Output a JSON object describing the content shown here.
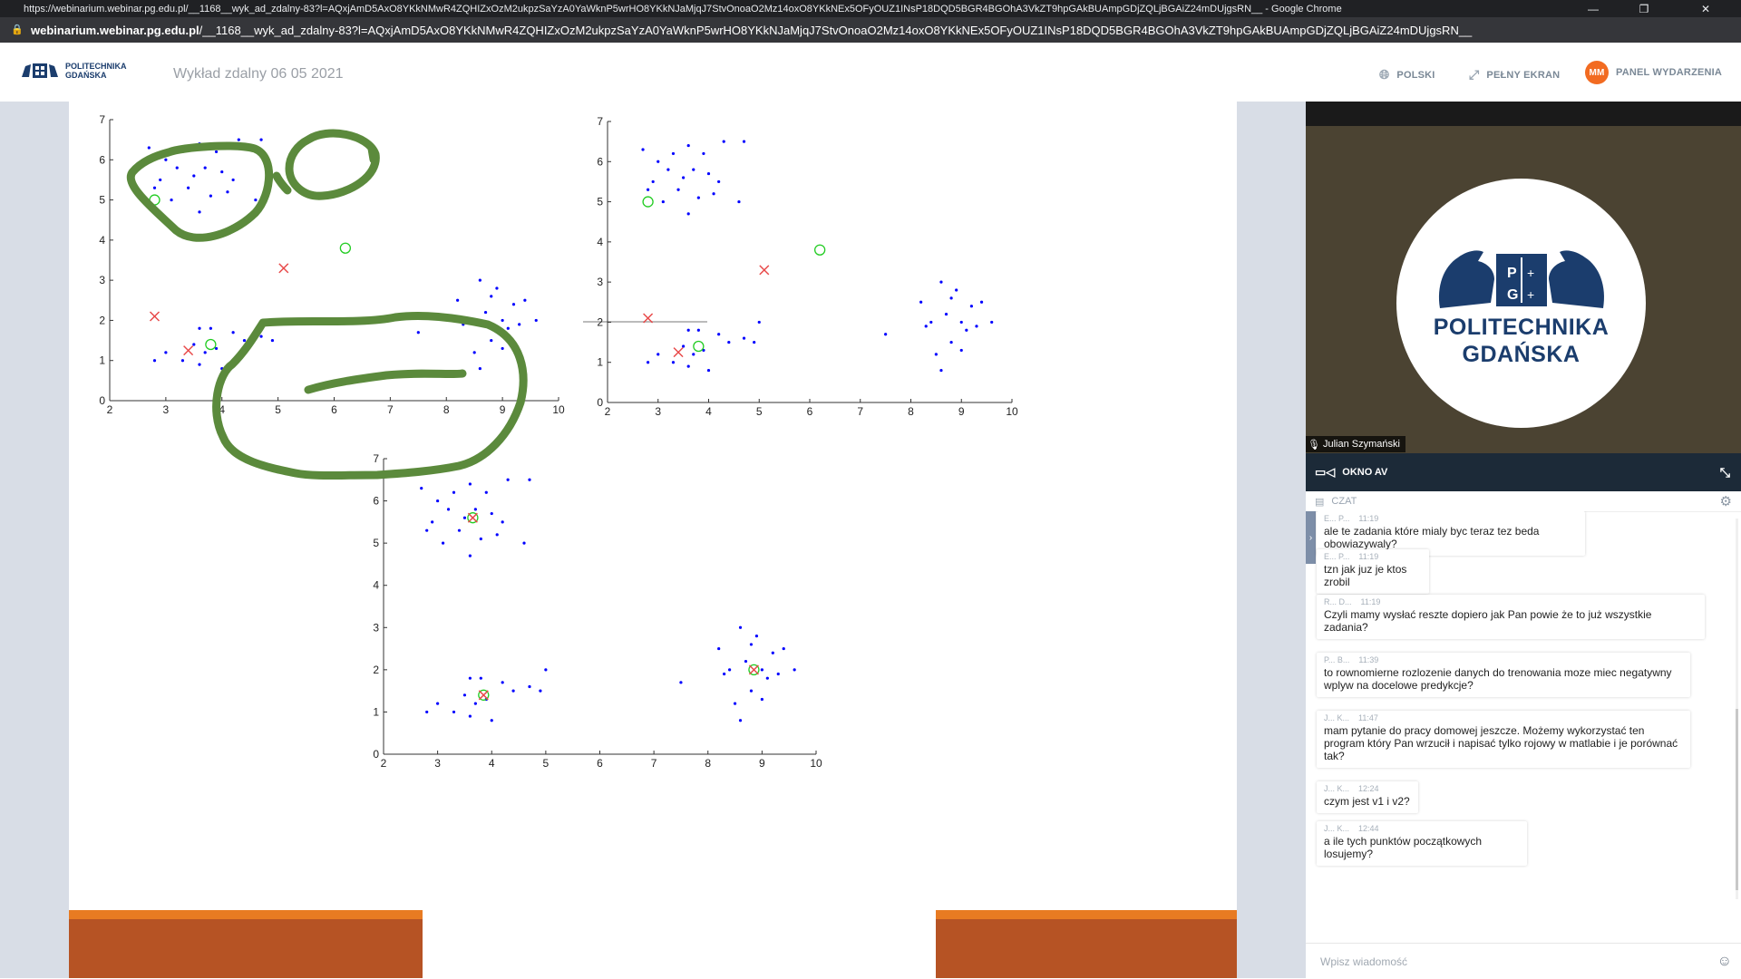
{
  "browser": {
    "window_title": "https://webinarium.webinar.pg.edu.pl/__1168__wyk_ad_zdalny-83?l=AQxjAmD5AxO8YKkNMwR4ZQHIZxOzM2ukpzSaYzA0YaWknP5wrHO8YKkNJaMjqJ7StvOnoaO2Mz14oxO8YKkNEx5OFyOUZ1INsP18DQD5BGR4BGOhA3VkZT9hpGAkBUAmpGDjZQLjBGAiZ24mDUjgsRN__ - Google Chrome",
    "url_host": "webinarium.webinar.pg.edu.pl",
    "url_path": "/__1168__wyk_ad_zdalny-83?l=AQxjAmD5AxO8YKkNMwR4ZQHIZxOzM2ukpzSaYzA0YaWknP5wrHO8YKkNJaMjqJ7StvOnoaO2Mz14oxO8YKkNEx5OFyOUZ1INsP18DQD5BGR4BGOhA3VkZT9hpGAkBUAmpGDjZQLjBGAiZ24mDUjgsRN__"
  },
  "header": {
    "logo_line1": "POLITECHNIKA",
    "logo_line2": "GDAŃSKA",
    "event_title": "Wykład zdalny 06 05 2021",
    "lang_label": "POLSKI",
    "fullscreen_label": "PEŁNY EKRAN",
    "avatar_initials": "MM",
    "panel_label": "PANEL WYDARZENIA",
    "accent": "#f26b21"
  },
  "video": {
    "name_line1": "POLITECHNIKA",
    "name_line2": "GDAŃSKA",
    "speaker": "Julian Szymański",
    "av_label": "OKNO AV"
  },
  "chat": {
    "title": "CZAT",
    "placeholder": "Wpisz wiadomość",
    "messages": [
      {
        "author": "E... P...",
        "time": "11:19",
        "text": "ale te zadania które mialy byc teraz tez beda obowiazywaly?"
      },
      {
        "author": "E... P...",
        "time": "11:19",
        "text": "tzn jak juz je ktos zrobil"
      },
      {
        "author": "R... D...",
        "time": "11:19",
        "text": "Czyli mamy wysłać reszte dopiero jak Pan powie że to już wszystkie zadania?"
      },
      {
        "author": "P... B...",
        "time": "11:39",
        "text": "to rownomierne rozlozenie danych do trenowania moze miec negatywny wplyw na docelowe predykcje?"
      },
      {
        "author": "J... K...",
        "time": "11:47",
        "text": "mam pytanie do pracy domowej jeszcze. Możemy wykorzystać ten program który Pan wrzucił i napisać tylko rojowy w matlabie i je porównać tak?"
      },
      {
        "author": "J... K...",
        "time": "12:24",
        "text": "czym jest v1 i v2?"
      },
      {
        "author": "J... K...",
        "time": "12:44",
        "text": "a ile tych punktów początkowych losujemy?"
      }
    ]
  },
  "chart_data": [
    {
      "type": "scatter",
      "xlim": [
        2,
        10
      ],
      "ylim": [
        0,
        7
      ],
      "xticks": [
        2,
        3,
        4,
        5,
        6,
        7,
        8,
        9,
        10
      ],
      "yticks": [
        0,
        1,
        2,
        3,
        4,
        5,
        6,
        7
      ],
      "series": [
        {
          "marker": "dot",
          "color": "#0000ff",
          "points": [
            [
              2.7,
              6.3
            ],
            [
              3.0,
              6.0
            ],
            [
              3.2,
              5.8
            ],
            [
              3.3,
              6.2
            ],
            [
              3.5,
              5.6
            ],
            [
              3.6,
              6.4
            ],
            [
              2.8,
              5.3
            ],
            [
              3.1,
              5.0
            ],
            [
              3.4,
              5.3
            ],
            [
              3.7,
              5.8
            ],
            [
              4.0,
              5.7
            ],
            [
              4.2,
              5.5
            ],
            [
              3.8,
              5.1
            ],
            [
              3.6,
              4.7
            ],
            [
              4.6,
              5.0
            ],
            [
              4.7,
              6.5
            ],
            [
              4.3,
              6.5
            ],
            [
              2.9,
              5.5
            ],
            [
              3.9,
              6.2
            ],
            [
              4.1,
              5.2
            ],
            [
              3.5,
              1.4
            ],
            [
              3.3,
              1.0
            ],
            [
              3.6,
              0.9
            ],
            [
              3.7,
              1.2
            ],
            [
              3.9,
              1.3
            ],
            [
              4.0,
              0.8
            ],
            [
              3.8,
              1.8
            ],
            [
              4.2,
              1.7
            ],
            [
              4.4,
              1.5
            ],
            [
              3.0,
              1.2
            ],
            [
              2.8,
              1.0
            ],
            [
              3.6,
              1.8
            ],
            [
              4.7,
              1.6
            ],
            [
              5.0,
              2.0
            ],
            [
              4.9,
              1.5
            ],
            [
              8.2,
              2.5
            ],
            [
              8.4,
              2.0
            ],
            [
              8.6,
              3.0
            ],
            [
              8.7,
              2.2
            ],
            [
              8.8,
              1.5
            ],
            [
              8.9,
              2.8
            ],
            [
              9.0,
              2.0
            ],
            [
              9.1,
              1.8
            ],
            [
              9.2,
              2.4
            ],
            [
              8.5,
              1.2
            ],
            [
              8.6,
              0.8
            ],
            [
              8.3,
              1.9
            ],
            [
              9.3,
              1.9
            ],
            [
              9.0,
              1.3
            ],
            [
              7.5,
              1.7
            ],
            [
              9.6,
              2.0
            ],
            [
              9.4,
              2.5
            ],
            [
              8.8,
              2.6
            ]
          ]
        },
        {
          "marker": "circle",
          "color": "#22cc22",
          "points": [
            [
              2.8,
              5.0
            ],
            [
              3.8,
              1.4
            ],
            [
              6.2,
              3.8
            ]
          ]
        },
        {
          "marker": "x",
          "color": "#e84a4a",
          "points": [
            [
              5.1,
              3.3
            ],
            [
              2.8,
              2.1
            ],
            [
              3.4,
              1.25
            ]
          ]
        }
      ]
    },
    {
      "type": "scatter",
      "xlim": [
        2,
        10
      ],
      "ylim": [
        0,
        7
      ],
      "xticks": [
        2,
        3,
        4,
        5,
        6,
        7,
        8,
        9,
        10
      ],
      "yticks": [
        0,
        1,
        2,
        3,
        4,
        5,
        6,
        7
      ],
      "series": [
        {
          "marker": "dot",
          "color": "#0000ff",
          "points": [
            [
              2.7,
              6.3
            ],
            [
              3.0,
              6.0
            ],
            [
              3.2,
              5.8
            ],
            [
              3.3,
              6.2
            ],
            [
              3.5,
              5.6
            ],
            [
              3.6,
              6.4
            ],
            [
              2.8,
              5.3
            ],
            [
              3.1,
              5.0
            ],
            [
              3.4,
              5.3
            ],
            [
              3.7,
              5.8
            ],
            [
              4.0,
              5.7
            ],
            [
              4.2,
              5.5
            ],
            [
              3.8,
              5.1
            ],
            [
              3.6,
              4.7
            ],
            [
              4.6,
              5.0
            ],
            [
              4.7,
              6.5
            ],
            [
              4.3,
              6.5
            ],
            [
              2.9,
              5.5
            ],
            [
              3.9,
              6.2
            ],
            [
              4.1,
              5.2
            ],
            [
              3.5,
              1.4
            ],
            [
              3.3,
              1.0
            ],
            [
              3.6,
              0.9
            ],
            [
              3.7,
              1.2
            ],
            [
              3.9,
              1.3
            ],
            [
              4.0,
              0.8
            ],
            [
              3.8,
              1.8
            ],
            [
              4.2,
              1.7
            ],
            [
              4.4,
              1.5
            ],
            [
              3.0,
              1.2
            ],
            [
              2.8,
              1.0
            ],
            [
              3.6,
              1.8
            ],
            [
              4.7,
              1.6
            ],
            [
              5.0,
              2.0
            ],
            [
              4.9,
              1.5
            ],
            [
              8.2,
              2.5
            ],
            [
              8.4,
              2.0
            ],
            [
              8.6,
              3.0
            ],
            [
              8.7,
              2.2
            ],
            [
              8.8,
              1.5
            ],
            [
              8.9,
              2.8
            ],
            [
              9.0,
              2.0
            ],
            [
              9.1,
              1.8
            ],
            [
              9.2,
              2.4
            ],
            [
              8.5,
              1.2
            ],
            [
              8.6,
              0.8
            ],
            [
              8.3,
              1.9
            ],
            [
              9.3,
              1.9
            ],
            [
              9.0,
              1.3
            ],
            [
              7.5,
              1.7
            ],
            [
              9.6,
              2.0
            ],
            [
              9.4,
              2.5
            ],
            [
              8.8,
              2.6
            ]
          ]
        },
        {
          "marker": "circle",
          "color": "#22cc22",
          "points": [
            [
              2.8,
              5.0
            ],
            [
              3.8,
              1.4
            ],
            [
              6.2,
              3.8
            ]
          ]
        },
        {
          "marker": "x",
          "color": "#e84a4a",
          "points": [
            [
              5.1,
              3.3
            ],
            [
              2.8,
              2.1
            ],
            [
              3.4,
              1.25
            ]
          ]
        }
      ]
    },
    {
      "type": "scatter",
      "xlim": [
        2,
        10
      ],
      "ylim": [
        0,
        7
      ],
      "xticks": [
        2,
        3,
        4,
        5,
        6,
        7,
        8,
        9,
        10
      ],
      "yticks": [
        0,
        1,
        2,
        3,
        4,
        5,
        6,
        7
      ],
      "series": [
        {
          "marker": "dot",
          "color": "#0000ff",
          "points": [
            [
              2.7,
              6.3
            ],
            [
              3.0,
              6.0
            ],
            [
              3.2,
              5.8
            ],
            [
              3.3,
              6.2
            ],
            [
              3.5,
              5.6
            ],
            [
              3.6,
              6.4
            ],
            [
              2.8,
              5.3
            ],
            [
              3.1,
              5.0
            ],
            [
              3.4,
              5.3
            ],
            [
              3.7,
              5.8
            ],
            [
              4.0,
              5.7
            ],
            [
              4.2,
              5.5
            ],
            [
              3.8,
              5.1
            ],
            [
              3.6,
              4.7
            ],
            [
              4.6,
              5.0
            ],
            [
              4.7,
              6.5
            ],
            [
              4.3,
              6.5
            ],
            [
              2.9,
              5.5
            ],
            [
              3.9,
              6.2
            ],
            [
              4.1,
              5.2
            ],
            [
              3.5,
              1.4
            ],
            [
              3.3,
              1.0
            ],
            [
              3.6,
              0.9
            ],
            [
              3.7,
              1.2
            ],
            [
              3.9,
              1.3
            ],
            [
              4.0,
              0.8
            ],
            [
              3.8,
              1.8
            ],
            [
              4.2,
              1.7
            ],
            [
              4.4,
              1.5
            ],
            [
              3.0,
              1.2
            ],
            [
              2.8,
              1.0
            ],
            [
              3.6,
              1.8
            ],
            [
              4.7,
              1.6
            ],
            [
              5.0,
              2.0
            ],
            [
              4.9,
              1.5
            ],
            [
              8.2,
              2.5
            ],
            [
              8.4,
              2.0
            ],
            [
              8.6,
              3.0
            ],
            [
              8.7,
              2.2
            ],
            [
              8.8,
              1.5
            ],
            [
              8.9,
              2.8
            ],
            [
              9.0,
              2.0
            ],
            [
              9.1,
              1.8
            ],
            [
              9.2,
              2.4
            ],
            [
              8.5,
              1.2
            ],
            [
              8.6,
              0.8
            ],
            [
              8.3,
              1.9
            ],
            [
              9.3,
              1.9
            ],
            [
              9.0,
              1.3
            ],
            [
              7.5,
              1.7
            ],
            [
              9.6,
              2.0
            ],
            [
              9.4,
              2.5
            ],
            [
              8.8,
              2.6
            ]
          ]
        },
        {
          "marker": "circle",
          "color": "#22cc22",
          "points": [
            [
              3.65,
              5.6
            ],
            [
              3.85,
              1.4
            ],
            [
              8.85,
              2.0
            ]
          ]
        },
        {
          "marker": "x",
          "color": "#e84a4a",
          "points": [
            [
              3.65,
              5.6
            ],
            [
              3.85,
              1.4
            ],
            [
              8.85,
              2.0
            ]
          ]
        }
      ]
    }
  ]
}
